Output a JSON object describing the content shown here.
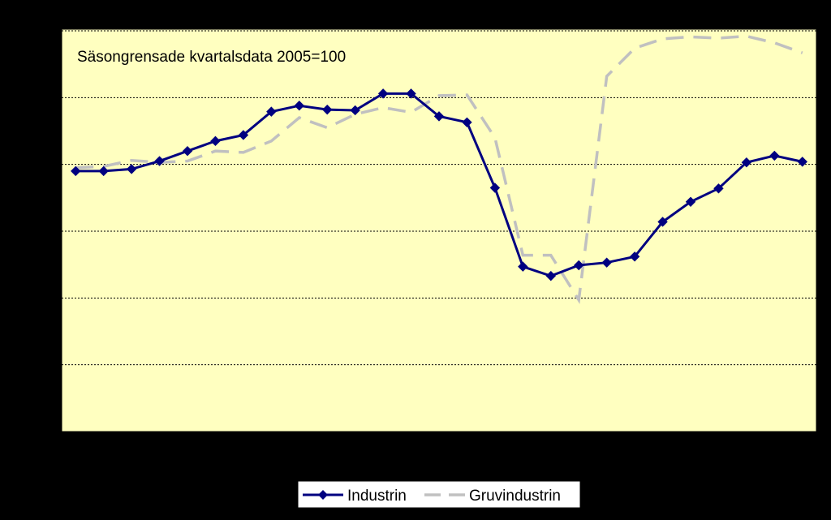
{
  "colors": {
    "background": "#000000",
    "plot_area": "#FFFFC0",
    "gridline": "#000000",
    "industrin": "#000080",
    "gruvindustrin": "#C0C0C0"
  },
  "chart_data": {
    "type": "line",
    "title": "Säsongrensade kvartalsdata 2005=100",
    "xlabel": "",
    "ylabel": "",
    "categories_count": 27,
    "ylim": [
      0,
      6
    ],
    "grid": "horizontal dotted",
    "legend_position": "bottom-center",
    "series": [
      {
        "name": "Industrin",
        "style": "solid line with diamond markers",
        "values": [
          3.9,
          3.9,
          3.93,
          4.05,
          4.2,
          4.35,
          4.44,
          4.79,
          4.88,
          4.82,
          4.81,
          5.06,
          5.06,
          4.72,
          4.63,
          3.65,
          2.47,
          2.33,
          2.49,
          2.53,
          2.62,
          3.14,
          3.44,
          3.64,
          4.03,
          4.13,
          4.04
        ]
      },
      {
        "name": "Gruvindustrin",
        "style": "dashed line",
        "values": [
          3.95,
          3.97,
          4.06,
          4.03,
          4.05,
          4.2,
          4.18,
          4.35,
          4.7,
          4.55,
          4.75,
          4.85,
          4.78,
          5.03,
          5.04,
          4.4,
          2.64,
          2.64,
          1.97,
          5.32,
          5.74,
          5.88,
          5.91,
          5.89,
          5.92,
          5.82,
          5.67
        ]
      }
    ]
  }
}
